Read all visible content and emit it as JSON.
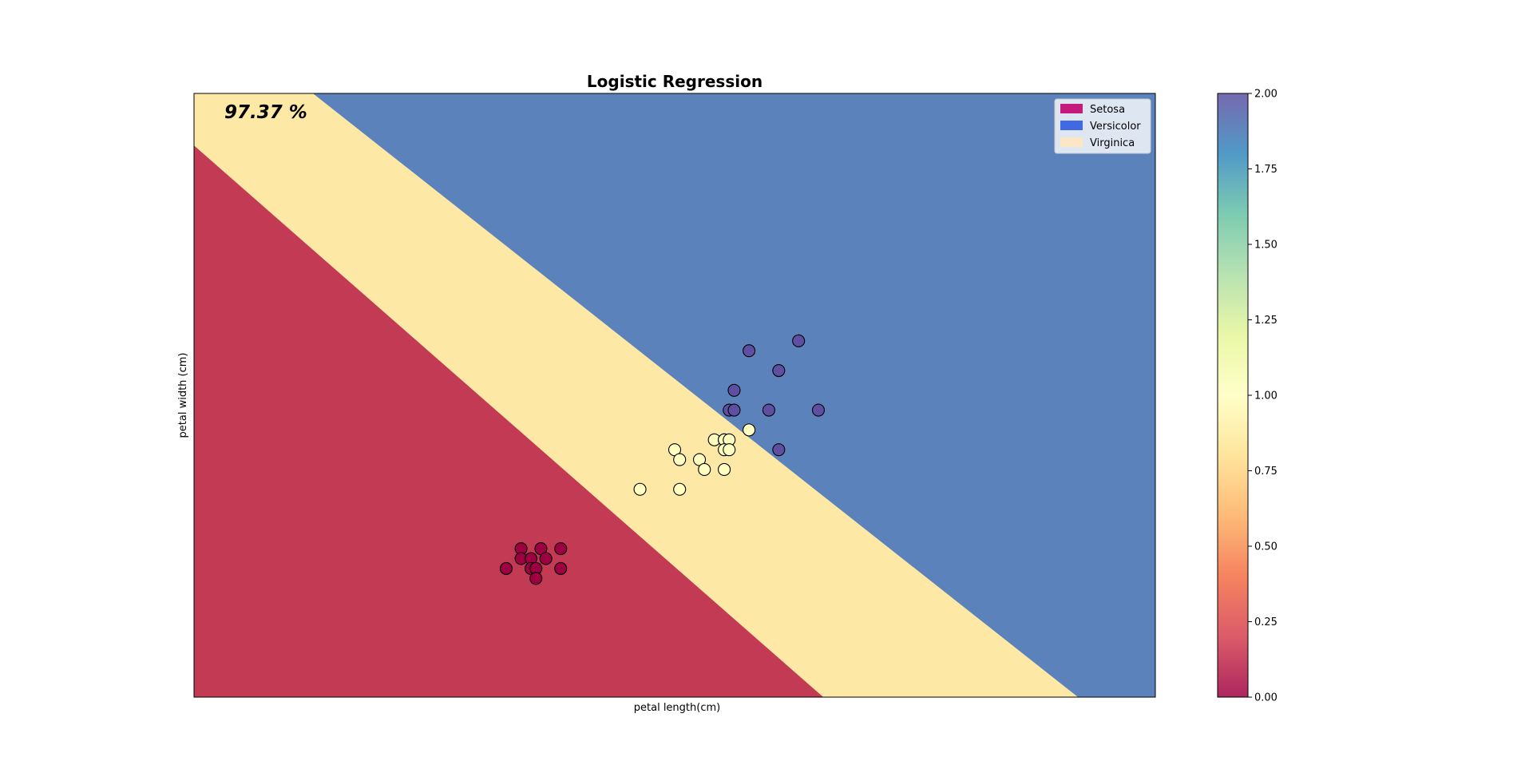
{
  "chart_data": {
    "type": "scatter",
    "title": "Logistic Regression",
    "xlabel": "petal length(cm)",
    "ylabel": "petal width (cm)",
    "annotation": "97.37 %",
    "xlim": [
      0,
      9.7
    ],
    "ylim": [
      0,
      6.1
    ],
    "grid": false,
    "ticks_visible": false,
    "legend_position": "top-right",
    "regions": {
      "description_label": "decision regions",
      "class_order": [
        "Setosa",
        "Virginica",
        "Versicolor"
      ],
      "region_colors": [
        "#c33a55",
        "#fde9a5",
        "#5b82bb"
      ],
      "boundary_setosa_virginica": {
        "x_at_top": -0.6,
        "x_at_bottom": 6.35
      },
      "boundary_virginica_versicolor": {
        "x_at_top": 1.2,
        "x_at_bottom": 8.92
      }
    },
    "legend": [
      {
        "label": "Setosa",
        "color": "#c51b7d"
      },
      {
        "label": "Versicolor",
        "color": "#4169e1"
      },
      {
        "label": "Virginica",
        "color": "#fbe6c5"
      }
    ],
    "series": [
      {
        "name": "Setosa",
        "class_value": 0,
        "color": "#9e0142",
        "points": [
          [
            3.3,
            1.5
          ],
          [
            3.5,
            1.5
          ],
          [
            3.7,
            1.5
          ],
          [
            3.3,
            1.4
          ],
          [
            3.4,
            1.4
          ],
          [
            3.55,
            1.4
          ],
          [
            3.15,
            1.3
          ],
          [
            3.4,
            1.3
          ],
          [
            3.45,
            1.3
          ],
          [
            3.7,
            1.3
          ],
          [
            3.45,
            1.2
          ]
        ]
      },
      {
        "name": "Versicolor",
        "class_value": 1,
        "color": "#ffffbf",
        "points": [
          [
            5.6,
            2.7
          ],
          [
            5.25,
            2.6
          ],
          [
            5.35,
            2.6
          ],
          [
            5.35,
            2.6
          ],
          [
            5.4,
            2.6
          ],
          [
            4.85,
            2.5
          ],
          [
            5.35,
            2.5
          ],
          [
            5.4,
            2.5
          ],
          [
            4.9,
            2.4
          ],
          [
            5.1,
            2.4
          ],
          [
            5.15,
            2.3
          ],
          [
            5.35,
            2.3
          ],
          [
            4.5,
            2.1
          ],
          [
            4.9,
            2.1
          ]
        ]
      },
      {
        "name": "Virginica",
        "class_value": 2,
        "color": "#5e4fa2",
        "points": [
          [
            6.1,
            3.6
          ],
          [
            5.6,
            3.5
          ],
          [
            5.9,
            3.3
          ],
          [
            5.45,
            3.1
          ],
          [
            5.4,
            2.9
          ],
          [
            5.45,
            2.9
          ],
          [
            5.8,
            2.9
          ],
          [
            6.3,
            2.9
          ],
          [
            5.9,
            2.5
          ]
        ]
      }
    ],
    "colorbar": {
      "range": [
        0,
        2
      ],
      "ticks": [
        "0.00",
        "0.25",
        "0.50",
        "0.75",
        "1.00",
        "1.25",
        "1.50",
        "1.75",
        "2.00"
      ],
      "colormap": "Spectral",
      "colormap_stops": [
        "#9e0142",
        "#d53e4f",
        "#f46d43",
        "#fdae61",
        "#fee08b",
        "#ffffbf",
        "#e6f598",
        "#abdda4",
        "#66c2a5",
        "#3288bd",
        "#5e4fa2"
      ]
    }
  }
}
